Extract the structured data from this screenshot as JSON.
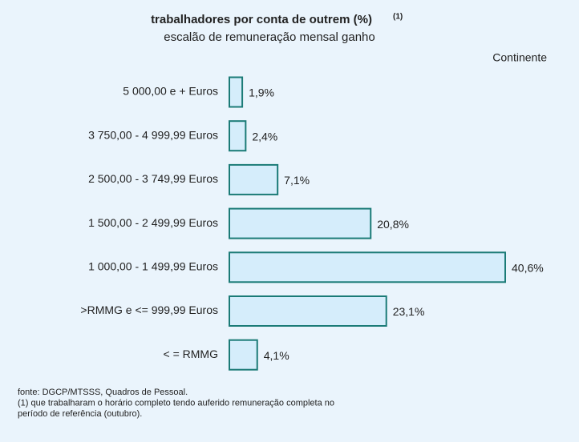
{
  "chart_data": {
    "type": "barh",
    "title": "trabalhadores por conta de outrem (%)",
    "title_note": "(1)",
    "subtitle": "escalão de remuneração mensal ganho",
    "annotation": "Continente",
    "categories": [
      "5 000,00 e + Euros",
      "3 750,00 - 4 999,99 Euros",
      "2 500,00 - 3 749,99 Euros",
      "1 500,00 - 2 499,99 Euros",
      "1 000,00 - 1 499,99 Euros",
      ">RMMG e <= 999,99 Euros",
      "< = RMMG"
    ],
    "values": [
      1.9,
      2.4,
      7.1,
      20.8,
      40.6,
      23.1,
      4.1
    ],
    "value_labels": [
      "1,9%",
      "2,4%",
      "7,1%",
      "20,8%",
      "40,6%",
      "23,1%",
      "4,1%"
    ],
    "color": "#d5edfb",
    "edge_color": "#1b7b77",
    "notes": [
      "fonte: DGCP/MTSSS, Quadros de Pessoal.",
      "(1) que trabalharam o horário completo tendo  auferido remuneração completa no",
      "período de referência (outubro)."
    ]
  }
}
